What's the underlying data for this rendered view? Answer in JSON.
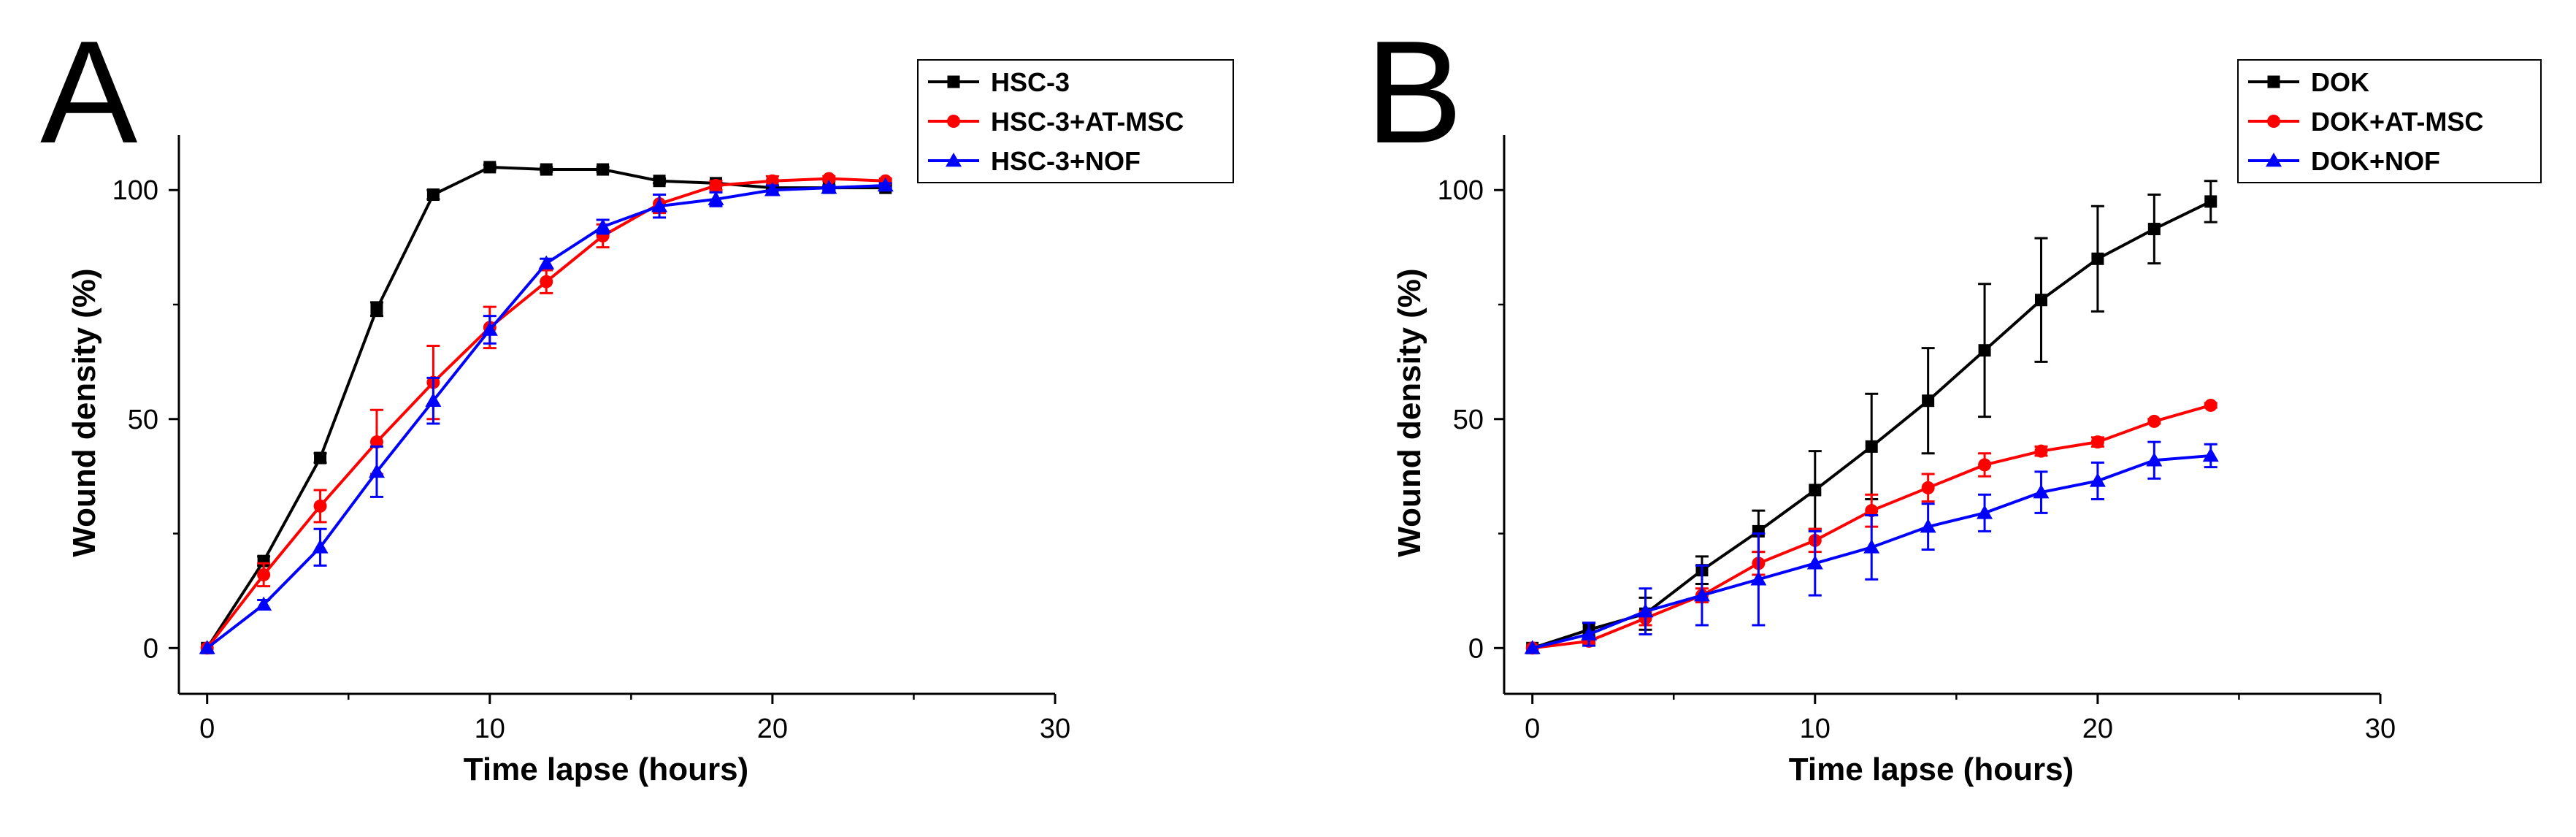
{
  "chart_data": [
    {
      "type": "line",
      "panel_label": "A",
      "xlabel": "Time lapse (hours)",
      "ylabel": "Wound density (%)",
      "xlim": [
        -1,
        30
      ],
      "ylim": [
        -10,
        112
      ],
      "xticks": [
        0,
        10,
        20,
        30
      ],
      "yticks": [
        0,
        50,
        100
      ],
      "legend_position": "top-right",
      "grid": false,
      "series": [
        {
          "name": "HSC-3",
          "color": "#000000",
          "marker": "square",
          "x": [
            0,
            2,
            4,
            6,
            8,
            10,
            12,
            14,
            16,
            18,
            20,
            22,
            24
          ],
          "y": [
            0,
            19,
            41.5,
            74,
            99,
            105,
            104.5,
            104.5,
            102,
            101.5,
            100.5,
            100.5,
            100.5
          ],
          "err": [
            0,
            1,
            1,
            1.5,
            1,
            0.5,
            0.5,
            0.5,
            0.5,
            0.5,
            0.5,
            0.5,
            0.5
          ]
        },
        {
          "name": "HSC-3+AT-MSC",
          "color": "#ff0000",
          "marker": "circle",
          "x": [
            0,
            2,
            4,
            6,
            8,
            10,
            12,
            14,
            16,
            18,
            20,
            22,
            24
          ],
          "y": [
            0,
            16,
            31,
            45,
            58,
            70,
            80,
            90,
            97,
            101,
            102,
            102.5,
            102
          ],
          "err": [
            0,
            2.5,
            3.5,
            7,
            8,
            4.5,
            2.5,
            2.5,
            2,
            1,
            1,
            0.5,
            0.5
          ]
        },
        {
          "name": "HSC-3+NOF",
          "color": "#0000ff",
          "marker": "triangle",
          "x": [
            0,
            2,
            4,
            6,
            8,
            10,
            12,
            14,
            16,
            18,
            20,
            22,
            24
          ],
          "y": [
            0,
            9.5,
            22,
            38.5,
            54,
            69.5,
            84,
            92,
            96.5,
            98,
            100,
            100.5,
            101
          ],
          "err": [
            0,
            1,
            4,
            5.5,
            5,
            3,
            1,
            1.5,
            2.5,
            1.5,
            1,
            0.5,
            0.5
          ]
        }
      ]
    },
    {
      "type": "line",
      "panel_label": "B",
      "xlabel": "Time lapse (hours)",
      "ylabel": "Wound density (%)",
      "xlim": [
        -1,
        30
      ],
      "ylim": [
        -10,
        112
      ],
      "xticks": [
        0,
        10,
        20,
        30
      ],
      "yticks": [
        0,
        50,
        100
      ],
      "legend_position": "top-right",
      "grid": false,
      "series": [
        {
          "name": "DOK",
          "color": "#000000",
          "marker": "square",
          "x": [
            0,
            2,
            4,
            6,
            8,
            10,
            12,
            14,
            16,
            18,
            20,
            22,
            24
          ],
          "y": [
            0,
            4,
            7.5,
            17,
            25.5,
            34.5,
            44,
            54,
            65,
            76,
            85,
            91.5,
            97.5
          ],
          "err": [
            0,
            1.5,
            3.5,
            3,
            4.5,
            8.5,
            11.5,
            11.5,
            14.5,
            13.5,
            11.5,
            7.5,
            4.5
          ]
        },
        {
          "name": "DOK+AT-MSC",
          "color": "#ff0000",
          "marker": "circle",
          "x": [
            0,
            2,
            4,
            6,
            8,
            10,
            12,
            14,
            16,
            18,
            20,
            22,
            24
          ],
          "y": [
            0,
            1.5,
            6.5,
            11.5,
            18.5,
            23.5,
            30,
            35,
            40,
            43,
            45,
            49.5,
            53
          ],
          "err": [
            0,
            0.5,
            1.5,
            1.5,
            2.5,
            2.5,
            3.5,
            3,
            2.5,
            1,
            1,
            0.5,
            0.5
          ]
        },
        {
          "name": "DOK+NOF",
          "color": "#0000ff",
          "marker": "triangle",
          "x": [
            0,
            2,
            4,
            6,
            8,
            10,
            12,
            14,
            16,
            18,
            20,
            22,
            24
          ],
          "y": [
            0,
            3,
            8,
            11.5,
            15,
            18.5,
            22,
            26.5,
            29.5,
            34,
            36.5,
            41,
            42
          ],
          "err": [
            0,
            2.5,
            5,
            6.5,
            10,
            7,
            7,
            5,
            4,
            4.5,
            4,
            4,
            2.5
          ]
        }
      ]
    }
  ]
}
